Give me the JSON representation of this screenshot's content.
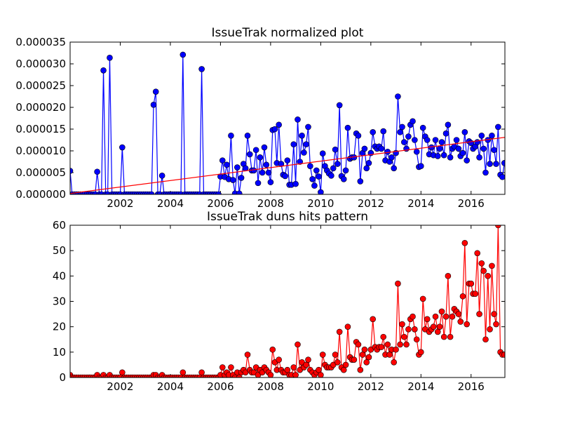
{
  "chart_data": [
    {
      "type": "line",
      "title": "IssueTrak normalized plot",
      "xlabel": "",
      "ylabel": "",
      "xlim": [
        2000.0,
        2017.35
      ],
      "ylim": [
        0,
        3.5e-05
      ],
      "x_ticks": [
        2002,
        2004,
        2006,
        2008,
        2010,
        2012,
        2014,
        2016
      ],
      "y_ticks": [
        "0.000000",
        "0.000005",
        "0.000010",
        "0.000015",
        "0.000020",
        "0.000025",
        "0.000030",
        "0.000035"
      ],
      "grid": false,
      "series": [
        {
          "color": "#0000ff",
          "marker": "circle",
          "x": [
            2000.0,
            2000.08,
            2000.17,
            2000.25,
            2000.33,
            2000.42,
            2000.5,
            2000.58,
            2000.67,
            2000.75,
            2000.83,
            2000.92,
            2001.0,
            2001.08,
            2001.17,
            2001.25,
            2001.33,
            2001.42,
            2001.5,
            2001.58,
            2001.67,
            2001.75,
            2001.83,
            2001.92,
            2002.0,
            2002.08,
            2002.17,
            2002.25,
            2002.33,
            2002.42,
            2002.5,
            2002.58,
            2002.67,
            2002.75,
            2002.83,
            2002.92,
            2003.0,
            2003.08,
            2003.17,
            2003.25,
            2003.33,
            2003.42,
            2003.5,
            2003.58,
            2003.67,
            2003.75,
            2003.83,
            2003.92,
            2004.0,
            2004.08,
            2004.17,
            2004.25,
            2004.33,
            2004.42,
            2004.5,
            2004.58,
            2004.67,
            2004.75,
            2004.83,
            2004.92,
            2005.0,
            2005.08,
            2005.17,
            2005.25,
            2005.33,
            2005.42,
            2005.5,
            2005.58,
            2005.67,
            2005.75,
            2005.83,
            2005.92,
            2006.0,
            2006.08,
            2006.17,
            2006.25,
            2006.33,
            2006.42,
            2006.5,
            2006.58,
            2006.67,
            2006.75,
            2006.83,
            2006.92,
            2007.0,
            2007.08,
            2007.17,
            2007.25,
            2007.33,
            2007.42,
            2007.5,
            2007.58,
            2007.67,
            2007.75,
            2007.83,
            2007.92,
            2008.0,
            2008.08,
            2008.17,
            2008.25,
            2008.33,
            2008.42,
            2008.5,
            2008.58,
            2008.67,
            2008.75,
            2008.83,
            2008.92,
            2009.0,
            2009.08,
            2009.17,
            2009.25,
            2009.33,
            2009.42,
            2009.5,
            2009.58,
            2009.67,
            2009.75,
            2009.83,
            2009.92,
            2010.0,
            2010.08,
            2010.17,
            2010.25,
            2010.33,
            2010.42,
            2010.5,
            2010.58,
            2010.67,
            2010.75,
            2010.83,
            2010.92,
            2011.0,
            2011.08,
            2011.17,
            2011.25,
            2011.33,
            2011.42,
            2011.5,
            2011.58,
            2011.67,
            2011.75,
            2011.83,
            2011.92,
            2012.0,
            2012.08,
            2012.17,
            2012.25,
            2012.33,
            2012.42,
            2012.5,
            2012.58,
            2012.67,
            2012.75,
            2012.83,
            2012.92,
            2013.0,
            2013.08,
            2013.17,
            2013.25,
            2013.33,
            2013.42,
            2013.5,
            2013.58,
            2013.67,
            2013.75,
            2013.83,
            2013.92,
            2014.0,
            2014.08,
            2014.17,
            2014.25,
            2014.33,
            2014.42,
            2014.5,
            2014.58,
            2014.67,
            2014.75,
            2014.83,
            2014.92,
            2015.0,
            2015.08,
            2015.17,
            2015.25,
            2015.33,
            2015.42,
            2015.5,
            2015.58,
            2015.67,
            2015.75,
            2015.83,
            2015.92,
            2016.0,
            2016.08,
            2016.17,
            2016.25,
            2016.33,
            2016.42,
            2016.5,
            2016.58,
            2016.67,
            2016.75,
            2016.83,
            2016.92,
            2017.0,
            2017.08,
            2017.17,
            2017.25,
            2017.33
          ],
          "y": [
            5.4e-06,
            0,
            0,
            0,
            0,
            0,
            0,
            0,
            0,
            0,
            0,
            0,
            0,
            5.2e-06,
            0,
            0,
            2.85e-05,
            0,
            0,
            3.14e-05,
            0,
            0,
            0,
            0,
            0,
            1.08e-05,
            0,
            0,
            0,
            0,
            0,
            0,
            0,
            0,
            0,
            0,
            0,
            0,
            0,
            0,
            2.06e-05,
            2.36e-05,
            0,
            0,
            4.3e-06,
            0,
            0,
            0,
            0,
            0,
            0,
            0,
            0,
            0,
            3.21e-05,
            0,
            0,
            0,
            0,
            0,
            0,
            0,
            0,
            2.88e-05,
            0,
            0,
            0,
            0,
            0,
            0,
            0,
            0,
            4.1e-06,
            7.8e-06,
            4e-06,
            6.8e-06,
            3.5e-06,
            1.35e-05,
            3.3e-06,
            2e-07,
            6.2e-06,
            2e-07,
            3.8e-06,
            7e-06,
            6e-06,
            1.35e-05,
            9.2e-06,
            5.5e-06,
            5.5e-06,
            1.02e-05,
            2.6e-06,
            8.5e-06,
            5e-06,
            1.08e-05,
            6.8e-06,
            5e-06,
            2.8e-06,
            1.48e-05,
            1.5e-05,
            7.2e-06,
            1.6e-05,
            7e-06,
            4.5e-06,
            4.2e-06,
            7.8e-06,
            2.2e-06,
            2.2e-06,
            1.15e-05,
            2.4e-06,
            1.72e-05,
            7.5e-06,
            1.35e-05,
            9.6e-06,
            1.15e-05,
            1.55e-05,
            6.5e-06,
            3.5e-06,
            2e-06,
            5.5e-06,
            4.1e-06,
            5e-07,
            9.4e-06,
            6.5e-06,
            5.5e-06,
            4.8e-06,
            4.3e-06,
            6e-06,
            1.03e-05,
            7e-06,
            2.05e-05,
            4.2e-06,
            3.5e-06,
            5.5e-06,
            1.53e-05,
            8.2e-06,
            8.5e-06,
            8.5e-06,
            1.4e-05,
            1.35e-05,
            3e-06,
            9.5e-06,
            1.05e-05,
            6e-06,
            7.2e-06,
            9.5e-06,
            1.43e-05,
            1.1e-05,
            1.05e-05,
            1.1e-05,
            1.05e-05,
            1.45e-05,
            7.8e-06,
            9.8e-06,
            7.5e-06,
            8.5e-06,
            6e-06,
            9.5e-06,
            2.25e-05,
            1.43e-05,
            1.55e-05,
            1.2e-05,
            1.05e-05,
            1.33e-05,
            1.6e-05,
            1.68e-05,
            1.25e-05,
            9.8e-06,
            6.3e-06,
            6.5e-06,
            1.53e-05,
            1.33e-05,
            1.25e-05,
            9.2e-06,
            1.08e-05,
            9e-06,
            1.25e-05,
            8.8e-06,
            1.05e-05,
            1.2e-05,
            9e-06,
            1.4e-05,
            1.6e-05,
            8.5e-06,
            1.05e-05,
            1.1e-05,
            1.25e-05,
            1.05e-05,
            8.8e-06,
            9.5e-06,
            1.43e-05,
            7.8e-06,
            1.22e-05,
            1.18e-05,
            1.05e-05,
            1.1e-05,
            1.2e-05,
            8.5e-06,
            1.35e-05,
            1.05e-05,
            5e-06,
            1.25e-05,
            7e-06,
            1.35e-05,
            1.02e-05,
            7e-06,
            1.55e-05,
            4.5e-06,
            4e-06,
            7.2e-06
          ]
        },
        {
          "color": "#ff0000",
          "marker": "none",
          "x": [
            2000.0,
            2017.35
          ],
          "y": [
            2e-07,
            1.31e-05
          ]
        }
      ]
    },
    {
      "type": "line",
      "title": "IssueTrak duns hits pattern",
      "xlabel": "",
      "ylabel": "",
      "xlim": [
        2000.0,
        2017.35
      ],
      "ylim": [
        0,
        60
      ],
      "x_ticks": [
        2002,
        2004,
        2006,
        2008,
        2010,
        2012,
        2014,
        2016
      ],
      "y_ticks": [
        0,
        10,
        20,
        30,
        40,
        50,
        60
      ],
      "grid": false,
      "series": [
        {
          "color": "#ff0000",
          "marker": "circle",
          "x": [
            2000.0,
            2000.08,
            2000.17,
            2000.25,
            2000.33,
            2000.42,
            2000.5,
            2000.58,
            2000.67,
            2000.75,
            2000.83,
            2000.92,
            2001.0,
            2001.08,
            2001.17,
            2001.25,
            2001.33,
            2001.42,
            2001.5,
            2001.58,
            2001.67,
            2001.75,
            2001.83,
            2001.92,
            2002.0,
            2002.08,
            2002.17,
            2002.25,
            2002.33,
            2002.42,
            2002.5,
            2002.58,
            2002.67,
            2002.75,
            2002.83,
            2002.92,
            2003.0,
            2003.08,
            2003.17,
            2003.25,
            2003.33,
            2003.42,
            2003.5,
            2003.58,
            2003.67,
            2003.75,
            2003.83,
            2003.92,
            2004.0,
            2004.08,
            2004.17,
            2004.25,
            2004.33,
            2004.42,
            2004.5,
            2004.58,
            2004.67,
            2004.75,
            2004.83,
            2004.92,
            2005.0,
            2005.08,
            2005.17,
            2005.25,
            2005.33,
            2005.42,
            2005.5,
            2005.58,
            2005.67,
            2005.75,
            2005.83,
            2005.92,
            2006.0,
            2006.08,
            2006.17,
            2006.25,
            2006.33,
            2006.42,
            2006.5,
            2006.58,
            2006.67,
            2006.75,
            2006.83,
            2006.92,
            2007.0,
            2007.08,
            2007.17,
            2007.25,
            2007.33,
            2007.42,
            2007.5,
            2007.58,
            2007.67,
            2007.75,
            2007.83,
            2007.92,
            2008.0,
            2008.08,
            2008.17,
            2008.25,
            2008.33,
            2008.42,
            2008.5,
            2008.58,
            2008.67,
            2008.75,
            2008.83,
            2008.92,
            2009.0,
            2009.08,
            2009.17,
            2009.25,
            2009.33,
            2009.42,
            2009.5,
            2009.58,
            2009.67,
            2009.75,
            2009.83,
            2009.92,
            2010.0,
            2010.08,
            2010.17,
            2010.25,
            2010.33,
            2010.42,
            2010.5,
            2010.58,
            2010.67,
            2010.75,
            2010.83,
            2010.92,
            2011.0,
            2011.08,
            2011.17,
            2011.25,
            2011.33,
            2011.42,
            2011.5,
            2011.58,
            2011.67,
            2011.75,
            2011.83,
            2011.92,
            2012.0,
            2012.08,
            2012.17,
            2012.25,
            2012.33,
            2012.42,
            2012.5,
            2012.58,
            2012.67,
            2012.75,
            2012.83,
            2012.92,
            2013.0,
            2013.08,
            2013.17,
            2013.25,
            2013.33,
            2013.42,
            2013.5,
            2013.58,
            2013.67,
            2013.75,
            2013.83,
            2013.92,
            2014.0,
            2014.08,
            2014.17,
            2014.25,
            2014.33,
            2014.42,
            2014.5,
            2014.58,
            2014.67,
            2014.75,
            2014.83,
            2014.92,
            2015.0,
            2015.08,
            2015.17,
            2015.25,
            2015.33,
            2015.42,
            2015.5,
            2015.58,
            2015.67,
            2015.75,
            2015.83,
            2015.92,
            2016.0,
            2016.08,
            2016.17,
            2016.25,
            2016.33,
            2016.42,
            2016.5,
            2016.58,
            2016.67,
            2016.75,
            2016.83,
            2016.92,
            2017.0,
            2017.08,
            2017.17,
            2017.25,
            2017.33
          ],
          "y": [
            1,
            0,
            0,
            0,
            0,
            0,
            0,
            0,
            0,
            0,
            0,
            0,
            0,
            1,
            0,
            0,
            1,
            0,
            0,
            1,
            0,
            0,
            0,
            0,
            0,
            2,
            0,
            0,
            0,
            0,
            0,
            0,
            0,
            0,
            0,
            0,
            0,
            0,
            0,
            0,
            1,
            1,
            0,
            0,
            1,
            0,
            0,
            0,
            0,
            0,
            0,
            0,
            0,
            0,
            2,
            0,
            0,
            0,
            0,
            0,
            0,
            0,
            0,
            2,
            0,
            0,
            0,
            0,
            0,
            0,
            0,
            0,
            1,
            4,
            1,
            2,
            1,
            4,
            1,
            0,
            2,
            0,
            2,
            3,
            2,
            9,
            3,
            2,
            2,
            4,
            1,
            3,
            2,
            4,
            3,
            2,
            1,
            11,
            6,
            3,
            7,
            3,
            2,
            2,
            3,
            1,
            1,
            4,
            1,
            13,
            3,
            6,
            4,
            5,
            7,
            3,
            2,
            1,
            2,
            3,
            1,
            9,
            5,
            4,
            4,
            4,
            5,
            9,
            6,
            18,
            4,
            3,
            5,
            20,
            8,
            7,
            7,
            14,
            13,
            3,
            9,
            11,
            6,
            8,
            11,
            23,
            12,
            11,
            12,
            12,
            16,
            9,
            13,
            9,
            11,
            6,
            11,
            37,
            13,
            21,
            16,
            13,
            19,
            23,
            24,
            19,
            15,
            9,
            10,
            31,
            19,
            23,
            18,
            19,
            20,
            24,
            18,
            20,
            26,
            16,
            24,
            40,
            16,
            24,
            27,
            26,
            25,
            22,
            32,
            53,
            21,
            37,
            37,
            33,
            33,
            49,
            25,
            45,
            42,
            15,
            40,
            19,
            44,
            25,
            21,
            60,
            10,
            9,
            9
          ]
        }
      ]
    }
  ]
}
